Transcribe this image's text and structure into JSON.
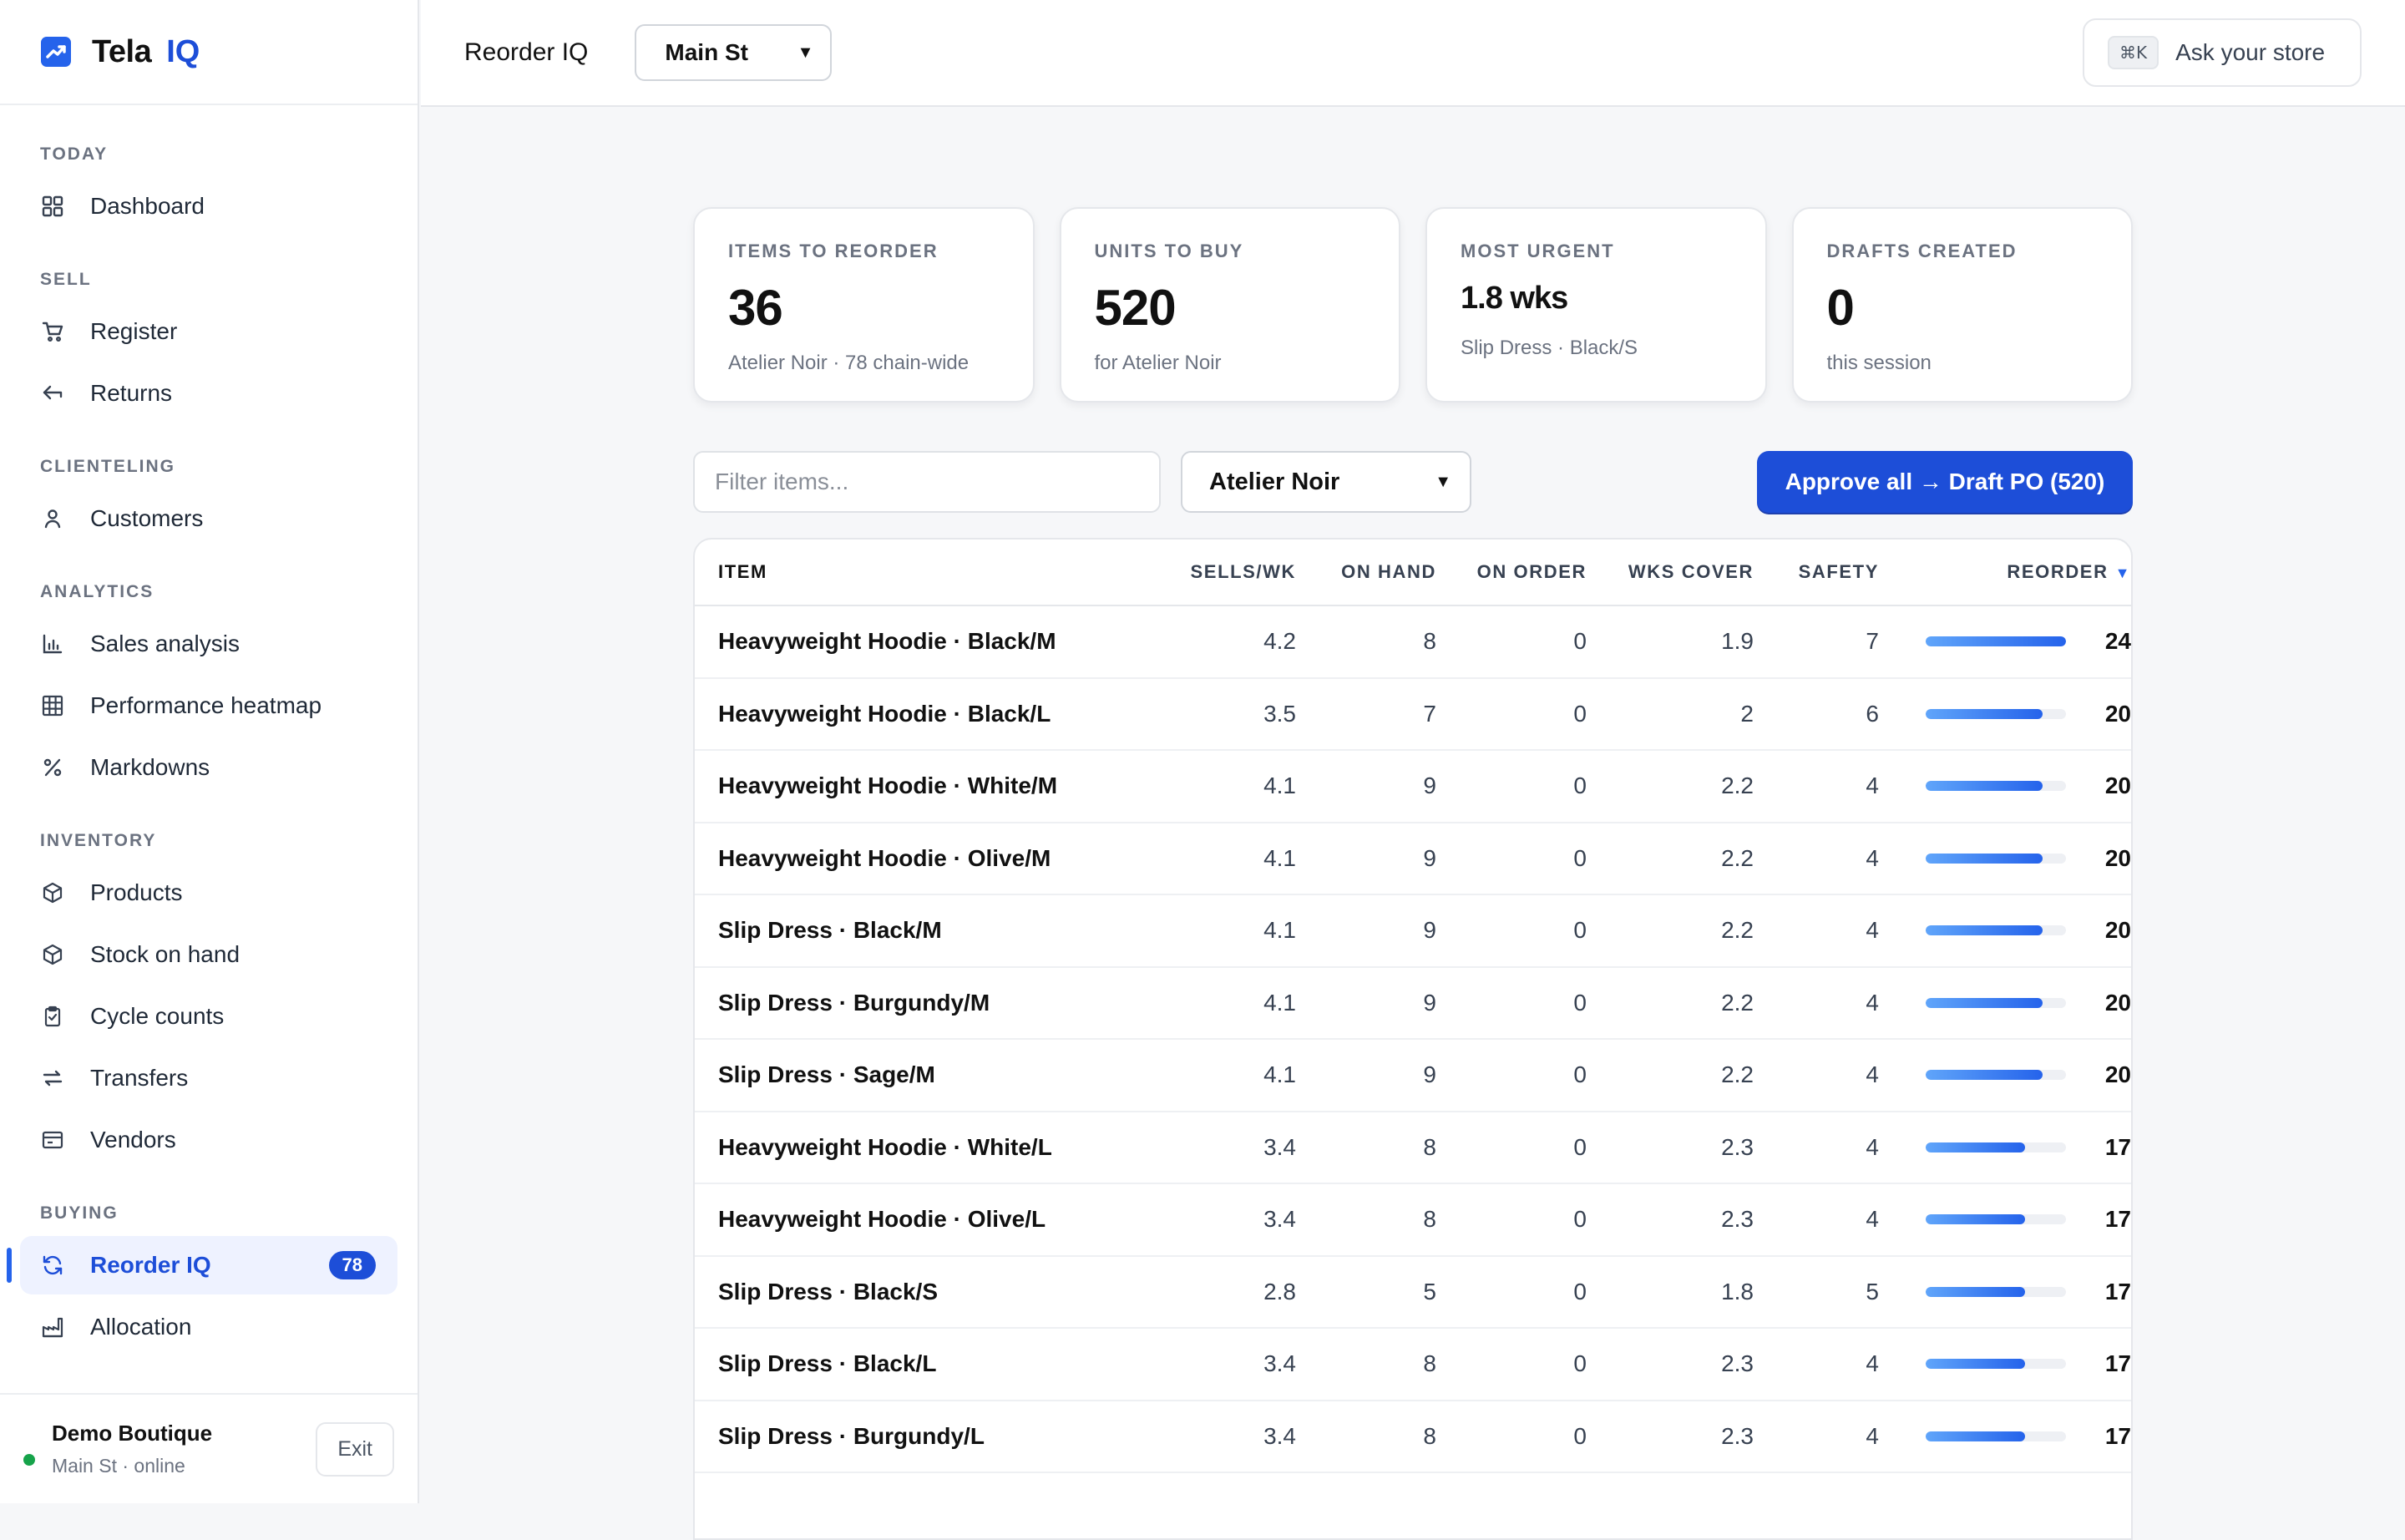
{
  "brand": {
    "name": "Tela",
    "suffix": "IQ"
  },
  "nav": {
    "sections": [
      {
        "title": "TODAY",
        "items": [
          {
            "label": "Dashboard",
            "icon": "grid-icon"
          }
        ]
      },
      {
        "title": "SELL",
        "items": [
          {
            "label": "Register",
            "icon": "cart-icon"
          },
          {
            "label": "Returns",
            "icon": "return-icon"
          }
        ]
      },
      {
        "title": "CLIENTELING",
        "items": [
          {
            "label": "Customers",
            "icon": "user-icon"
          }
        ]
      },
      {
        "title": "ANALYTICS",
        "items": [
          {
            "label": "Sales analysis",
            "icon": "bar-chart-icon"
          },
          {
            "label": "Performance heatmap",
            "icon": "heatmap-grid-icon"
          },
          {
            "label": "Markdowns",
            "icon": "percent-icon"
          }
        ]
      },
      {
        "title": "INVENTORY",
        "items": [
          {
            "label": "Products",
            "icon": "box-icon"
          },
          {
            "label": "Stock on hand",
            "icon": "box-icon"
          },
          {
            "label": "Cycle counts",
            "icon": "clipboard-icon"
          },
          {
            "label": "Transfers",
            "icon": "transfer-arrows-icon"
          },
          {
            "label": "Vendors",
            "icon": "vendor-icon"
          }
        ]
      },
      {
        "title": "BUYING",
        "items": [
          {
            "label": "Reorder IQ",
            "icon": "refresh-icon",
            "active": true,
            "badge": "78"
          },
          {
            "label": "Allocation",
            "icon": "factory-icon"
          }
        ]
      }
    ]
  },
  "footer": {
    "user": "Demo Boutique",
    "status": "Main St · online",
    "exit_label": "Exit"
  },
  "topbar": {
    "title": "Reorder IQ",
    "store": "Main St",
    "shortcut": "⌘K",
    "ask_label": "Ask your store"
  },
  "kpis": [
    {
      "label": "ITEMS TO REORDER",
      "value": "36",
      "sub": "Atelier Noir · 78 chain-wide"
    },
    {
      "label": "UNITS TO BUY",
      "value": "520",
      "sub": "for Atelier Noir"
    },
    {
      "label": "MOST URGENT",
      "value": "1.8 wks",
      "sub": "Slip Dress · Black/S"
    },
    {
      "label": "DRAFTS CREATED",
      "value": "0",
      "sub": "this session"
    }
  ],
  "toolbar": {
    "filter_placeholder": "Filter items...",
    "vendor": "Atelier Noir",
    "approve_label": "Approve all → Draft PO (520)"
  },
  "table": {
    "columns": {
      "item": "ITEM",
      "sells": "SELLS/WK",
      "on_hand": "ON HAND",
      "on_order": "ON ORDER",
      "wks_cover": "WKS COVER",
      "safety": "SAFETY",
      "reorder": "REORDER",
      "sort_indicator": "▼"
    },
    "reorder_scale_max": 24,
    "rows": [
      {
        "item": "Heavyweight Hoodie · Black/M",
        "sells": "4.2",
        "on_hand": "8",
        "on_order": "0",
        "wks_cover": "1.9",
        "safety": "7",
        "reorder": "24"
      },
      {
        "item": "Heavyweight Hoodie · Black/L",
        "sells": "3.5",
        "on_hand": "7",
        "on_order": "0",
        "wks_cover": "2",
        "safety": "6",
        "reorder": "20"
      },
      {
        "item": "Heavyweight Hoodie · White/M",
        "sells": "4.1",
        "on_hand": "9",
        "on_order": "0",
        "wks_cover": "2.2",
        "safety": "4",
        "reorder": "20"
      },
      {
        "item": "Heavyweight Hoodie · Olive/M",
        "sells": "4.1",
        "on_hand": "9",
        "on_order": "0",
        "wks_cover": "2.2",
        "safety": "4",
        "reorder": "20"
      },
      {
        "item": "Slip Dress · Black/M",
        "sells": "4.1",
        "on_hand": "9",
        "on_order": "0",
        "wks_cover": "2.2",
        "safety": "4",
        "reorder": "20"
      },
      {
        "item": "Slip Dress · Burgundy/M",
        "sells": "4.1",
        "on_hand": "9",
        "on_order": "0",
        "wks_cover": "2.2",
        "safety": "4",
        "reorder": "20"
      },
      {
        "item": "Slip Dress · Sage/M",
        "sells": "4.1",
        "on_hand": "9",
        "on_order": "0",
        "wks_cover": "2.2",
        "safety": "4",
        "reorder": "20"
      },
      {
        "item": "Heavyweight Hoodie · White/L",
        "sells": "3.4",
        "on_hand": "8",
        "on_order": "0",
        "wks_cover": "2.3",
        "safety": "4",
        "reorder": "17"
      },
      {
        "item": "Heavyweight Hoodie · Olive/L",
        "sells": "3.4",
        "on_hand": "8",
        "on_order": "0",
        "wks_cover": "2.3",
        "safety": "4",
        "reorder": "17"
      },
      {
        "item": "Slip Dress · Black/S",
        "sells": "2.8",
        "on_hand": "5",
        "on_order": "0",
        "wks_cover": "1.8",
        "safety": "5",
        "reorder": "17"
      },
      {
        "item": "Slip Dress · Black/L",
        "sells": "3.4",
        "on_hand": "8",
        "on_order": "0",
        "wks_cover": "2.3",
        "safety": "4",
        "reorder": "17"
      },
      {
        "item": "Slip Dress · Burgundy/L",
        "sells": "3.4",
        "on_hand": "8",
        "on_order": "0",
        "wks_cover": "2.3",
        "safety": "4",
        "reorder": "17"
      }
    ]
  },
  "colors": {
    "accent": "#1d4ed8",
    "status_online": "#16a34a"
  }
}
